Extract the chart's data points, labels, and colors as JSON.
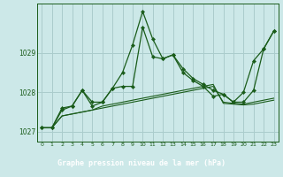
{
  "bg_color": "#cce8e8",
  "grid_color": "#aacccc",
  "line_color": "#1a5c1a",
  "title": "Graphe pression niveau de la mer (hPa)",
  "title_bg": "#2d6e2d",
  "title_fg": "#ffffff",
  "ylim": [
    1026.75,
    1030.25
  ],
  "xlim": [
    -0.5,
    23.5
  ],
  "yticks": [
    1027,
    1028,
    1029
  ],
  "xticks": [
    0,
    1,
    2,
    3,
    4,
    5,
    6,
    7,
    8,
    9,
    10,
    11,
    12,
    13,
    14,
    15,
    16,
    17,
    18,
    19,
    20,
    21,
    22,
    23
  ],
  "y_flat1": [
    1027.1,
    1027.1,
    1027.4,
    1027.45,
    1027.5,
    1027.55,
    1027.6,
    1027.65,
    1027.7,
    1027.75,
    1027.8,
    1027.85,
    1027.9,
    1027.95,
    1028.0,
    1028.05,
    1028.1,
    1028.15,
    1027.75,
    1027.72,
    1027.7,
    1027.75,
    1027.8,
    1027.85
  ],
  "y_flat2": [
    1027.1,
    1027.1,
    1027.4,
    1027.45,
    1027.5,
    1027.55,
    1027.65,
    1027.7,
    1027.75,
    1027.8,
    1027.85,
    1027.9,
    1027.95,
    1028.0,
    1028.05,
    1028.1,
    1028.15,
    1028.2,
    1027.72,
    1027.7,
    1027.68,
    1027.7,
    1027.75,
    1027.8
  ],
  "y_vol1": [
    1027.1,
    1027.1,
    1027.55,
    1027.65,
    1028.05,
    1027.65,
    1027.75,
    1028.1,
    1028.5,
    1029.2,
    1030.05,
    1029.35,
    1028.85,
    1028.95,
    1028.5,
    1028.3,
    1028.15,
    1027.9,
    1027.95,
    1027.75,
    1028.0,
    1028.8,
    1029.1,
    1029.55
  ],
  "y_vol2": [
    1027.1,
    1027.1,
    1027.6,
    1027.65,
    1028.05,
    1027.75,
    1027.75,
    1028.1,
    1028.15,
    1028.15,
    1029.65,
    1028.9,
    1028.85,
    1028.95,
    1028.6,
    1028.35,
    1028.2,
    1028.05,
    1027.95,
    1027.75,
    1027.75,
    1028.05,
    1029.1,
    1029.55
  ]
}
